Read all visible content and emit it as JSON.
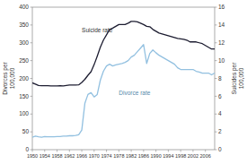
{
  "chart_data": {
    "type": "line",
    "x": [
      1950,
      1951,
      1952,
      1953,
      1954,
      1955,
      1956,
      1957,
      1958,
      1959,
      1960,
      1961,
      1962,
      1963,
      1964,
      1965,
      1966,
      1967,
      1968,
      1969,
      1970,
      1971,
      1972,
      1973,
      1974,
      1975,
      1976,
      1977,
      1978,
      1979,
      1980,
      1981,
      1982,
      1983,
      1984,
      1985,
      1986,
      1987,
      1988,
      1989,
      1990,
      1991,
      1992,
      1993,
      1994,
      1995,
      1996,
      1997,
      1998,
      1999,
      2000,
      2001,
      2002,
      2003,
      2004,
      2005,
      2006,
      2007,
      2008,
      2009
    ],
    "series": [
      {
        "color": "#92c0e0",
        "values": [
          35,
          38,
          36,
          35,
          37,
          36,
          36,
          36,
          37,
          37,
          38,
          38,
          39,
          39,
          40,
          42,
          55,
          130,
          155,
          160,
          148,
          155,
          195,
          220,
          235,
          240,
          235,
          238,
          240,
          242,
          245,
          250,
          260,
          265,
          275,
          285,
          295,
          242,
          270,
          280,
          272,
          265,
          260,
          255,
          250,
          245,
          240,
          230,
          225,
          225,
          225,
          225,
          225,
          220,
          218,
          215,
          215,
          215,
          210,
          215
        ]
      },
      {
        "color": "#1c1c30",
        "axis": "y2",
        "values": [
          7.5,
          7.35,
          7.2,
          7.18,
          7.18,
          7.18,
          7.15,
          7.15,
          7.15,
          7.18,
          7.15,
          7.2,
          7.25,
          7.25,
          7.25,
          7.28,
          7.55,
          7.9,
          8.35,
          8.75,
          9.55,
          10.5,
          11.5,
          12.3,
          12.9,
          13.5,
          13.65,
          13.85,
          14.05,
          14.05,
          14.05,
          14.2,
          14.4,
          14.4,
          14.35,
          14.2,
          14.05,
          13.85,
          13.8,
          13.5,
          13.3,
          13.1,
          13.0,
          12.9,
          12.8,
          12.7,
          12.6,
          12.5,
          12.45,
          12.4,
          12.3,
          12.1,
          12.1,
          12.1,
          12.0,
          11.9,
          11.7,
          11.5,
          11.3,
          11.3
        ]
      }
    ],
    "ylabel": "Divorces per\n100,000",
    "y2label": "Suicides per\n100,000",
    "xlim": [
      1950,
      2009
    ],
    "xticks": [
      1950,
      1954,
      1958,
      1962,
      1966,
      1970,
      1974,
      1978,
      1982,
      1986,
      1990,
      1994,
      1998,
      2002,
      2006
    ],
    "ylim": [
      0,
      400
    ],
    "yticks": [
      0,
      50,
      100,
      150,
      200,
      250,
      300,
      350,
      400
    ],
    "y2lim": [
      0,
      16
    ],
    "y2ticks": [
      0,
      2,
      4,
      6,
      8,
      10,
      12,
      14,
      16
    ],
    "annotations": [
      {
        "text": "Suicide rate",
        "x": 1966,
        "y": 13.2,
        "axis": "y2",
        "color": "#333333"
      },
      {
        "text": "Divorce rate",
        "x": 1978,
        "y": 6.1,
        "axis": "y2",
        "color": "#5588aa"
      }
    ],
    "grid": false
  }
}
